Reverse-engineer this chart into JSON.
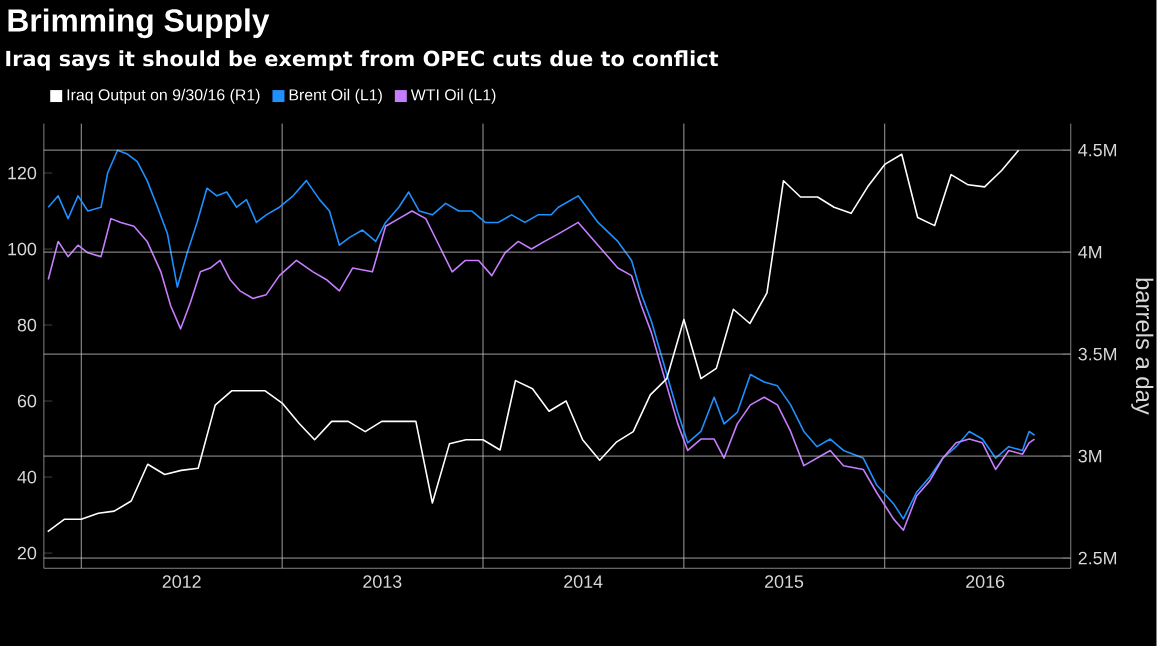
{
  "chart_data": {
    "type": "line",
    "title": "Brimming Supply",
    "subtitle": "Iraq says it should be exempt from OPEC cuts due to conflict",
    "y2label": "barrels a day",
    "legend": "top left",
    "grid": true,
    "xlim": [
      "2011-10-25",
      "2016-12-05"
    ],
    "xticks": [
      {
        "value": "2012-01-01",
        "label": null
      },
      {
        "value": "2012-07-02",
        "label": "2012"
      },
      {
        "value": "2013-01-01",
        "label": null
      },
      {
        "value": "2013-07-02",
        "label": "2013"
      },
      {
        "value": "2014-01-01",
        "label": null
      },
      {
        "value": "2014-07-02",
        "label": "2014"
      },
      {
        "value": "2015-01-01",
        "label": null
      },
      {
        "value": "2015-07-02",
        "label": "2015"
      },
      {
        "value": "2016-01-01",
        "label": null
      },
      {
        "value": "2016-07-02",
        "label": "2016"
      }
    ],
    "ylim": [
      16,
      133
    ],
    "yticks": [
      20,
      40,
      60,
      80,
      100,
      120
    ],
    "y2lim": [
      2.45,
      4.63
    ],
    "y2ticks": [
      {
        "value": 2.5,
        "label": "2.5M"
      },
      {
        "value": 3,
        "label": "3M"
      },
      {
        "value": 3.5,
        "label": "3.5M"
      },
      {
        "value": 4,
        "label": "4M"
      },
      {
        "value": 4.5,
        "label": "4.5M"
      }
    ],
    "series": [
      {
        "name": "Iraq Output on 9/30/16 (R1)",
        "color": "#ffffff",
        "axis": "y2",
        "x": [
          "2011-11",
          "2011-12",
          "2012-01",
          "2012-02",
          "2012-03",
          "2012-04",
          "2012-05",
          "2012-06",
          "2012-07",
          "2012-08",
          "2012-09",
          "2012-10",
          "2012-11",
          "2012-12",
          "2013-01",
          "2013-02",
          "2013-03",
          "2013-04",
          "2013-05",
          "2013-06",
          "2013-07",
          "2013-08",
          "2013-09",
          "2013-10",
          "2013-11",
          "2013-12",
          "2014-01",
          "2014-02",
          "2014-03",
          "2014-04",
          "2014-05",
          "2014-06",
          "2014-07",
          "2014-08",
          "2014-09",
          "2014-10",
          "2014-11",
          "2014-12",
          "2015-01",
          "2015-02",
          "2015-03",
          "2015-04",
          "2015-05",
          "2015-06",
          "2015-07",
          "2015-08",
          "2015-09",
          "2015-10",
          "2015-11",
          "2015-12",
          "2016-01",
          "2016-02",
          "2016-03",
          "2016-04",
          "2016-05",
          "2016-06",
          "2016-07",
          "2016-08",
          "2016-09"
        ],
        "values": [
          2.63,
          2.69,
          2.69,
          2.72,
          2.73,
          2.78,
          2.96,
          2.91,
          2.93,
          2.94,
          3.25,
          3.32,
          3.32,
          3.32,
          3.26,
          3.16,
          3.08,
          3.17,
          3.17,
          3.12,
          3.17,
          3.17,
          3.17,
          2.77,
          3.06,
          3.08,
          3.08,
          3.03,
          3.37,
          3.33,
          3.22,
          3.27,
          3.08,
          2.98,
          3.07,
          3.12,
          3.3,
          3.38,
          3.67,
          3.38,
          3.43,
          3.72,
          3.65,
          3.8,
          4.35,
          4.27,
          4.27,
          4.22,
          4.19,
          4.32,
          4.43,
          4.48,
          4.17,
          4.13,
          4.38,
          4.33,
          4.32,
          4.4,
          4.5
        ]
      },
      {
        "name": "Brent Oil (L1)",
        "color": "#1e90ff",
        "x": [
          "2011-11-02",
          "2011-11-20",
          "2011-12-08",
          "2011-12-26",
          "2012-01-13",
          "2012-02-06",
          "2012-02-18",
          "2012-03-07",
          "2012-03-25",
          "2012-04-12",
          "2012-04-30",
          "2012-05-19",
          "2012-06-06",
          "2012-06-24",
          "2012-07-12",
          "2012-07-30",
          "2012-08-17",
          "2012-09-04",
          "2012-09-22",
          "2012-10-10",
          "2012-10-28",
          "2012-11-15",
          "2012-12-03",
          "2012-12-27",
          "2013-01-21",
          "2013-02-14",
          "2013-03-10",
          "2013-03-28",
          "2013-04-15",
          "2013-05-03",
          "2013-05-27",
          "2013-06-20",
          "2013-07-08",
          "2013-08-01",
          "2013-08-19",
          "2013-09-07",
          "2013-10-01",
          "2013-10-25",
          "2013-11-18",
          "2013-12-12",
          "2014-01-05",
          "2014-01-29",
          "2014-02-22",
          "2014-03-18",
          "2014-04-11",
          "2014-05-05",
          "2014-05-18",
          "2014-06-23",
          "2014-07-29",
          "2014-09-03",
          "2014-09-28",
          "2014-10-16",
          "2014-11-03",
          "2014-11-27",
          "2014-12-21",
          "2015-01-08",
          "2015-02-01",
          "2015-02-25",
          "2015-03-15",
          "2015-04-08",
          "2015-05-02",
          "2015-05-27",
          "2015-06-20",
          "2015-07-14",
          "2015-08-07",
          "2015-08-31",
          "2015-09-24",
          "2015-10-18",
          "2015-11-23",
          "2015-12-17",
          "2016-01-17",
          "2016-02-04",
          "2016-02-28",
          "2016-03-23",
          "2016-04-16",
          "2016-05-10",
          "2016-06-03",
          "2016-06-27",
          "2016-07-21",
          "2016-08-14",
          "2016-09-08",
          "2016-09-20",
          "2016-09-30"
        ],
        "values": [
          111,
          114,
          108,
          114,
          110,
          111,
          120,
          126,
          125,
          123,
          118,
          111,
          104,
          90,
          99,
          107,
          116,
          114,
          115,
          111,
          113,
          107,
          109,
          111,
          114,
          118,
          113,
          110,
          101,
          103,
          105,
          102,
          107,
          111,
          115,
          110,
          109,
          112,
          110,
          110,
          107,
          107,
          109,
          107,
          109,
          109,
          111,
          114,
          107,
          102,
          97,
          88,
          81,
          69,
          57,
          49,
          52,
          61,
          54,
          57,
          67,
          65,
          64,
          59,
          52,
          48,
          50,
          47,
          45,
          38,
          33,
          29,
          36,
          40,
          45,
          48,
          52,
          50,
          45,
          48,
          47,
          52,
          51
        ]
      },
      {
        "name": "WTI Oil (L1)",
        "color": "#c77dff",
        "x": [
          "2011-11-02",
          "2011-11-20",
          "2011-12-08",
          "2011-12-26",
          "2012-01-13",
          "2012-02-06",
          "2012-02-24",
          "2012-03-13",
          "2012-04-06",
          "2012-04-30",
          "2012-05-25",
          "2012-06-12",
          "2012-06-30",
          "2012-07-18",
          "2012-08-05",
          "2012-08-23",
          "2012-09-10",
          "2012-09-28",
          "2012-10-16",
          "2012-11-09",
          "2012-12-03",
          "2012-12-27",
          "2013-01-27",
          "2013-02-26",
          "2013-03-22",
          "2013-04-15",
          "2013-05-09",
          "2013-06-14",
          "2013-07-08",
          "2013-08-01",
          "2013-08-25",
          "2013-09-19",
          "2013-10-13",
          "2013-11-06",
          "2013-11-30",
          "2013-12-24",
          "2014-01-17",
          "2014-02-10",
          "2014-03-06",
          "2014-03-30",
          "2014-04-23",
          "2014-05-18",
          "2014-06-23",
          "2014-07-29",
          "2014-09-03",
          "2014-09-28",
          "2014-10-16",
          "2014-11-03",
          "2014-11-27",
          "2014-12-21",
          "2015-01-08",
          "2015-02-01",
          "2015-02-25",
          "2015-03-15",
          "2015-04-08",
          "2015-05-02",
          "2015-05-27",
          "2015-06-20",
          "2015-07-14",
          "2015-08-07",
          "2015-08-31",
          "2015-09-24",
          "2015-10-18",
          "2015-11-23",
          "2015-12-17",
          "2016-01-17",
          "2016-02-04",
          "2016-02-28",
          "2016-03-23",
          "2016-04-16",
          "2016-05-10",
          "2016-06-03",
          "2016-06-27",
          "2016-07-21",
          "2016-08-14",
          "2016-09-08",
          "2016-09-20",
          "2016-09-30"
        ],
        "values": [
          92,
          102,
          98,
          101,
          99,
          98,
          108,
          107,
          106,
          102,
          94,
          85,
          79,
          86,
          94,
          95,
          97,
          92,
          89,
          87,
          88,
          93,
          97,
          94,
          92,
          89,
          95,
          94,
          106,
          108,
          110,
          108,
          101,
          94,
          97,
          97,
          93,
          99,
          102,
          100,
          102,
          104,
          107,
          101,
          95,
          93,
          85,
          78,
          66,
          54,
          47,
          50,
          50,
          45,
          54,
          59,
          61,
          59,
          52,
          43,
          45,
          47,
          43,
          42,
          36,
          29,
          26,
          35,
          39,
          45,
          49,
          50,
          49,
          42,
          47,
          46,
          49,
          50
        ]
      }
    ]
  }
}
